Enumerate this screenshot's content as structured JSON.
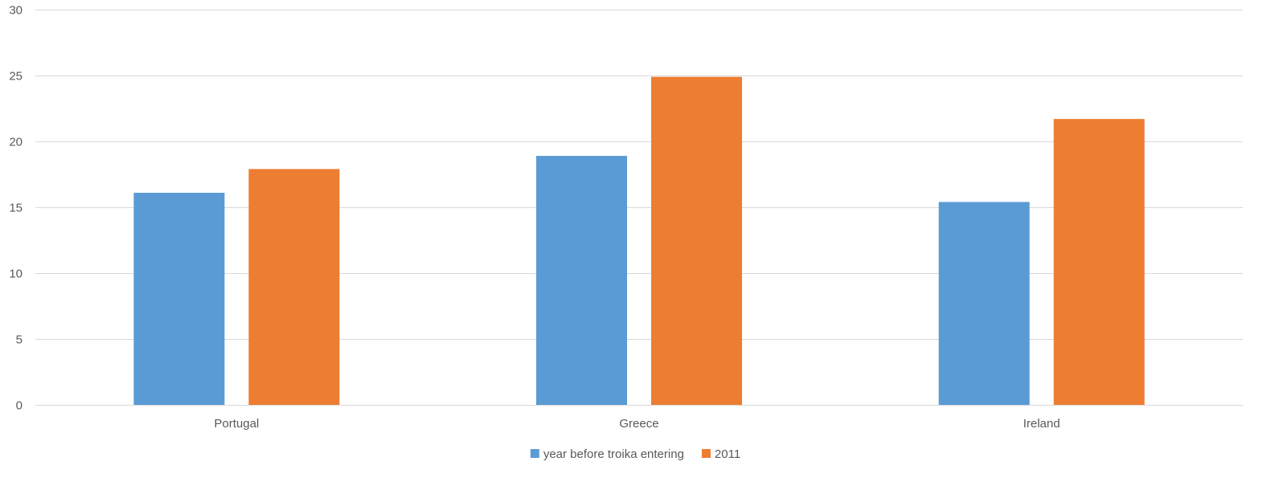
{
  "chart_data": {
    "type": "bar",
    "title": "",
    "xlabel": "",
    "ylabel": "",
    "categories": [
      "Portugal",
      "Greece",
      "Ireland"
    ],
    "series": [
      {
        "name": "year before troika entering",
        "values": [
          16.1,
          18.9,
          15.4
        ],
        "color": "#5b9bd5"
      },
      {
        "name": "2011",
        "values": [
          17.9,
          24.9,
          21.7
        ],
        "color": "#ed7d31"
      }
    ],
    "ylim": [
      0,
      30
    ],
    "yticks": [
      0,
      5,
      10,
      15,
      20,
      25,
      30
    ],
    "grid": true,
    "legend_position": "bottom"
  }
}
